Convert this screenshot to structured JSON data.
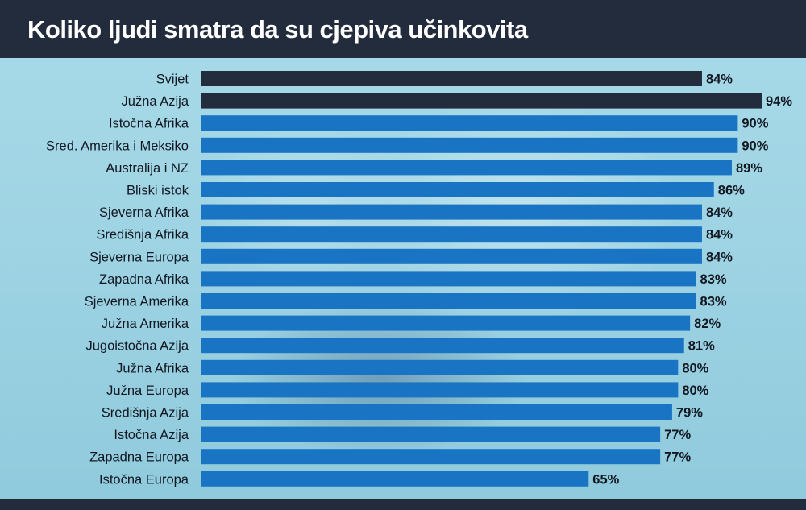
{
  "header": {
    "title": "Koliko ljudi smatra da su cjepiva učinkovita"
  },
  "colors": {
    "highlight_bar": "#232c3c",
    "bar": "#1a74c4",
    "header_bg": "#232c3c",
    "text": "#111822"
  },
  "chart_data": {
    "type": "bar",
    "orientation": "horizontal",
    "title": "Koliko ljudi smatra da su cjepiva učinkovita",
    "categories": [
      "Svijet",
      "Južna Azija",
      "Istočna Afrika",
      "Sred. Amerika i Meksiko",
      "Australija i NZ",
      "Bliski istok",
      "Sjeverna Afrika",
      "Središnja Afrika",
      "Sjeverna Europa",
      "Zapadna Afrika",
      "Sjeverna Amerika",
      "Južna Amerika",
      "Jugoistočna Azija",
      "Južna Afrika",
      "Južna Europa",
      "Središnja Azija",
      "Istočna Azija",
      "Zapadna Europa",
      "Istočna Europa"
    ],
    "values": [
      84,
      94,
      90,
      90,
      89,
      86,
      84,
      84,
      84,
      83,
      83,
      82,
      81,
      80,
      80,
      79,
      77,
      77,
      65
    ],
    "value_labels": [
      "84%",
      "94%",
      "90%",
      "90%",
      "89%",
      "86%",
      "84%",
      "84%",
      "84%",
      "83%",
      "83%",
      "82%",
      "81%",
      "80%",
      "80%",
      "79%",
      "77%",
      "77%",
      "65%"
    ],
    "highlighted": [
      "Svijet",
      "Južna Azija"
    ],
    "xlim": [
      0,
      94
    ],
    "grid": false,
    "legend": false
  }
}
